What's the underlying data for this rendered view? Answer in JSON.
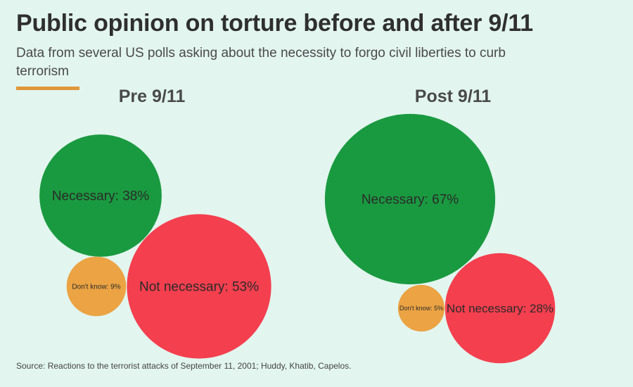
{
  "title": "Public opinion on torture before and after 9/11",
  "subtitle": "Data from several US polls asking about the necessity to forgo civil liberties to curb terrorism",
  "source": "Source: Reactions to the terrorist attacks of September 11, 2001; Huddy, Khatib, Capelos.",
  "colors": {
    "background": "#e2f5ef",
    "accent": "#e0973a",
    "necessary": "#1a9a40",
    "not_necessary": "#f43f4e",
    "dont_know": "#eba343"
  },
  "chart_data": [
    {
      "type": "bubble",
      "title": "Pre 9/11",
      "categories": [
        "Necessary",
        "Not necessary",
        "Don't know"
      ],
      "values": [
        38,
        53,
        9
      ],
      "labels": [
        "Necessary: 38%",
        "Not necessary: 53%",
        "Don't know: 9%"
      ],
      "unit": "%"
    },
    {
      "type": "bubble",
      "title": "Post 9/11",
      "categories": [
        "Necessary",
        "Not necessary",
        "Don't know"
      ],
      "values": [
        67,
        28,
        5
      ],
      "labels": [
        "Necessary: 67%",
        "Not necessary: 28%",
        "Don't know: 5%"
      ],
      "unit": "%"
    }
  ]
}
